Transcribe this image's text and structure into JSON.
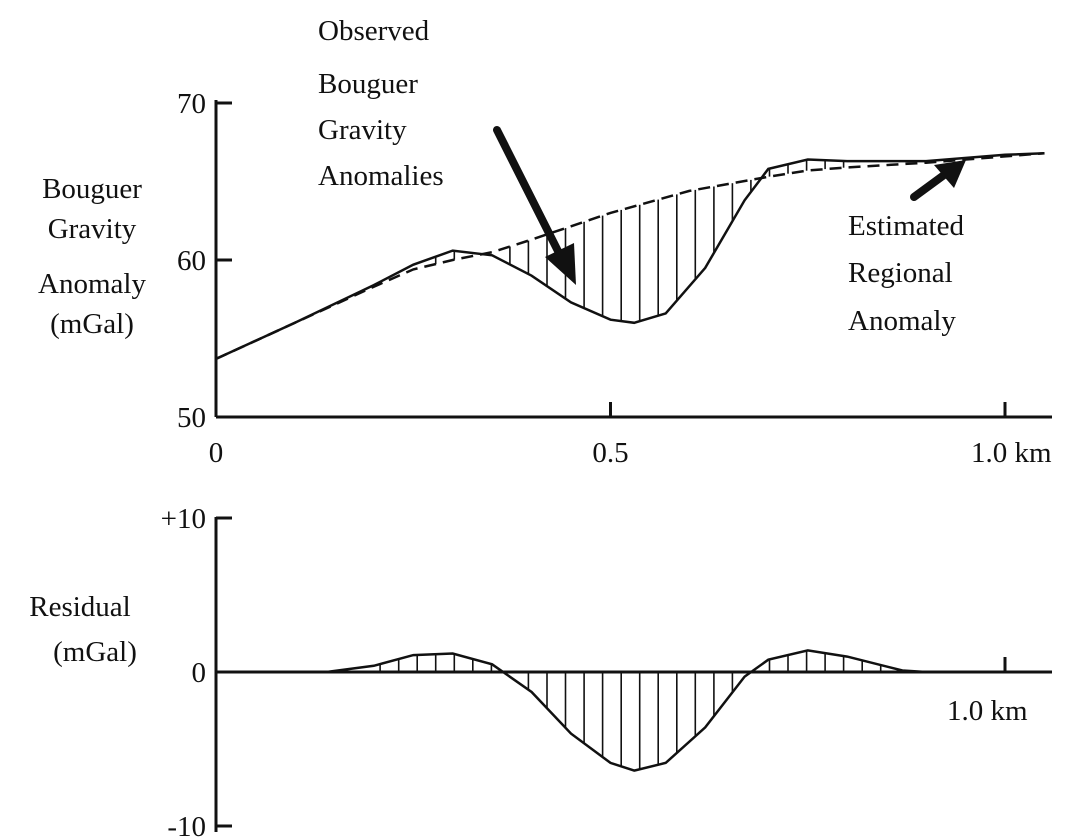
{
  "chart_data": [
    {
      "type": "line",
      "ylabel_lines": [
        "Bouguer",
        "Gravity",
        "Anomaly",
        "(mGal)"
      ],
      "xlim": [
        0,
        1.05
      ],
      "ylim": [
        50,
        70
      ],
      "x_ticks": [
        {
          "value": 0,
          "label": "0"
        },
        {
          "value": 0.5,
          "label": "0.5"
        },
        {
          "value": 1.0,
          "label": "1.0 km"
        }
      ],
      "y_ticks": [
        {
          "value": 70,
          "label": "70"
        },
        {
          "value": 60,
          "label": "60"
        },
        {
          "value": 50,
          "label": "50"
        }
      ],
      "series": [
        {
          "style": "solid",
          "x": [
            0,
            0.1,
            0.2,
            0.25,
            0.3,
            0.35,
            0.4,
            0.45,
            0.5,
            0.53,
            0.57,
            0.62,
            0.67,
            0.7,
            0.75,
            0.8,
            0.9,
            1.0,
            1.05
          ],
          "y": [
            53.7,
            56.0,
            58.4,
            59.7,
            60.6,
            60.3,
            59.0,
            57.3,
            56.2,
            56.0,
            56.6,
            59.5,
            63.8,
            65.8,
            66.4,
            66.3,
            66.3,
            66.7,
            66.8
          ]
        },
        {
          "style": "dashed",
          "x": [
            0,
            0.1,
            0.2,
            0.25,
            0.3,
            0.35,
            0.4,
            0.5,
            0.6,
            0.7,
            0.75,
            0.8,
            0.9,
            1.0,
            1.05
          ],
          "y": [
            53.7,
            56.0,
            58.3,
            59.4,
            60.0,
            60.5,
            61.3,
            63.0,
            64.4,
            65.3,
            65.7,
            65.9,
            66.2,
            66.6,
            66.8
          ]
        }
      ]
    },
    {
      "type": "area",
      "ylabel_lines": [
        "Residual",
        "(mGal)"
      ],
      "xlim": [
        0,
        1.05
      ],
      "ylim": [
        -10,
        10
      ],
      "x_ticks": [
        {
          "value": 1.0,
          "label": "1.0 km"
        }
      ],
      "y_ticks": [
        {
          "value": 10,
          "label": "+10"
        },
        {
          "value": 0,
          "label": "0"
        },
        {
          "value": -10,
          "label": "-10"
        }
      ],
      "series": [
        {
          "style": "solid",
          "x": [
            0,
            0.14,
            0.2,
            0.25,
            0.3,
            0.35,
            0.4,
            0.45,
            0.5,
            0.53,
            0.57,
            0.62,
            0.67,
            0.7,
            0.75,
            0.8,
            0.87,
            0.9,
            1.05
          ],
          "y": [
            0,
            0,
            0.4,
            1.1,
            1.2,
            0.5,
            -1.3,
            -4.0,
            -5.9,
            -6.4,
            -5.9,
            -3.6,
            -0.3,
            0.8,
            1.4,
            1.0,
            0.1,
            0,
            0
          ]
        }
      ]
    }
  ],
  "annotations": {
    "observed_lines": [
      "Observed",
      "Bouguer",
      "Gravity",
      "Anomalies"
    ],
    "regional_lines": [
      "Estimated",
      "Regional",
      "Anomaly"
    ]
  }
}
